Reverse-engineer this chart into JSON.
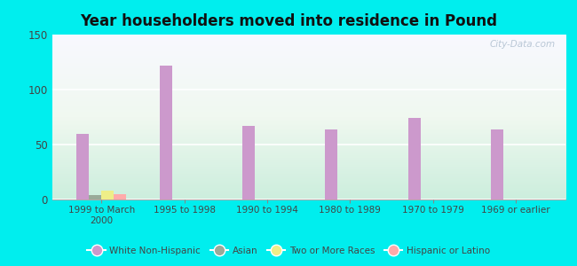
{
  "title": "Year householders moved into residence in Pound",
  "categories": [
    "1999 to March\n2000",
    "1995 to 1998",
    "1990 to 1994",
    "1980 to 1989",
    "1970 to 1979",
    "1969 or earlier"
  ],
  "series": {
    "White Non-Hispanic": [
      60,
      122,
      67,
      64,
      74,
      64
    ],
    "Asian": [
      4,
      0,
      0,
      0,
      0,
      0
    ],
    "Two or More Races": [
      8,
      0,
      0,
      0,
      0,
      0
    ],
    "Hispanic or Latino": [
      5,
      0,
      0,
      0,
      0,
      0
    ]
  },
  "colors": {
    "White Non-Hispanic": "#cc99cc",
    "Asian": "#99aa99",
    "Two or More Races": "#eeee88",
    "Hispanic or Latino": "#ffaaaa"
  },
  "ylim": [
    0,
    150
  ],
  "yticks": [
    0,
    50,
    100,
    150
  ],
  "bar_width": 0.15,
  "background_color": "#00eeee",
  "grid_color": "#ffffff",
  "title_color": "#111111",
  "tick_color": "#444444"
}
